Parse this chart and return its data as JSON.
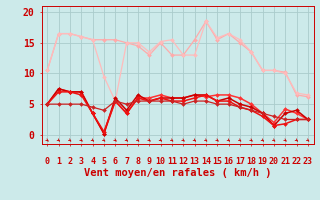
{
  "background_color": "#cceaea",
  "grid_color": "#aacccc",
  "x_labels": [
    "0",
    "1",
    "2",
    "3",
    "4",
    "5",
    "6",
    "7",
    "8",
    "9",
    "10",
    "11",
    "12",
    "13",
    "14",
    "15",
    "16",
    "17",
    "18",
    "19",
    "20",
    "21",
    "22",
    "23"
  ],
  "yticks": [
    0,
    5,
    10,
    15,
    20
  ],
  "ylim": [
    -1.5,
    21
  ],
  "xlim": [
    -0.5,
    23.5
  ],
  "lines": [
    {
      "x": [
        0,
        1,
        2,
        3,
        4,
        5,
        6,
        7,
        8,
        9,
        10,
        11,
        12,
        13,
        14,
        15,
        16,
        17,
        18,
        19,
        20,
        21,
        22,
        23
      ],
      "y": [
        10.5,
        16.5,
        16.5,
        16.0,
        15.5,
        15.5,
        15.5,
        15.0,
        14.5,
        13.0,
        15.0,
        13.0,
        13.0,
        15.5,
        18.5,
        15.5,
        16.5,
        15.0,
        13.5,
        10.5,
        10.5,
        10.2,
        6.5,
        6.2
      ],
      "color": "#ffaaaa",
      "lw": 0.9,
      "marker": "D",
      "ms": 2.0
    },
    {
      "x": [
        0,
        1,
        2,
        3,
        4,
        5,
        6,
        7,
        8,
        9,
        10,
        11,
        12,
        13,
        14,
        15,
        16,
        17,
        18,
        19,
        20,
        21,
        22,
        23
      ],
      "y": [
        10.5,
        16.5,
        16.5,
        16.0,
        15.5,
        9.5,
        5.5,
        15.0,
        15.0,
        13.5,
        15.2,
        15.5,
        13.0,
        13.0,
        18.5,
        15.8,
        16.5,
        15.5,
        13.5,
        10.5,
        10.5,
        10.0,
        6.8,
        6.5
      ],
      "color": "#ffbbbb",
      "lw": 0.9,
      "marker": "D",
      "ms": 2.0
    },
    {
      "x": [
        0,
        1,
        2,
        3,
        4,
        5,
        6,
        7,
        8,
        9,
        10,
        11,
        12,
        13,
        14,
        15,
        16,
        17,
        18,
        19,
        20,
        21,
        22,
        23
      ],
      "y": [
        5.0,
        7.5,
        7.0,
        7.0,
        3.5,
        0.2,
        5.5,
        3.5,
        6.0,
        6.0,
        6.5,
        6.0,
        6.0,
        6.5,
        6.2,
        6.5,
        6.5,
        6.0,
        5.0,
        3.5,
        2.0,
        4.2,
        3.5,
        2.5
      ],
      "color": "#ff3333",
      "lw": 1.1,
      "marker": "D",
      "ms": 2.0
    },
    {
      "x": [
        0,
        1,
        2,
        3,
        4,
        5,
        6,
        7,
        8,
        9,
        10,
        11,
        12,
        13,
        14,
        15,
        16,
        17,
        18,
        19,
        20,
        21,
        22,
        23
      ],
      "y": [
        5.0,
        7.5,
        7.0,
        7.0,
        3.5,
        0.2,
        6.0,
        4.0,
        6.5,
        5.5,
        6.0,
        6.0,
        6.0,
        6.5,
        6.5,
        5.5,
        6.0,
        5.0,
        4.5,
        3.5,
        1.5,
        3.5,
        4.0,
        2.5
      ],
      "color": "#cc0000",
      "lw": 1.1,
      "marker": "D",
      "ms": 2.0
    },
    {
      "x": [
        0,
        1,
        2,
        3,
        4,
        5,
        6,
        7,
        8,
        9,
        10,
        11,
        12,
        13,
        14,
        15,
        16,
        17,
        18,
        19,
        20,
        21,
        22,
        23
      ],
      "y": [
        5.0,
        7.0,
        7.0,
        6.5,
        3.5,
        0.5,
        5.5,
        3.5,
        6.0,
        5.5,
        6.0,
        5.5,
        5.5,
        6.0,
        6.5,
        5.5,
        5.5,
        4.5,
        4.0,
        3.0,
        1.5,
        1.8,
        2.5,
        2.5
      ],
      "color": "#ee1111",
      "lw": 1.1,
      "marker": "D",
      "ms": 2.0
    },
    {
      "x": [
        0,
        1,
        2,
        3,
        4,
        5,
        6,
        7,
        8,
        9,
        10,
        11,
        12,
        13,
        14,
        15,
        16,
        17,
        18,
        19,
        20,
        21,
        22,
        23
      ],
      "y": [
        5.0,
        5.0,
        5.0,
        5.0,
        4.5,
        4.0,
        5.5,
        5.0,
        5.5,
        5.5,
        5.5,
        5.5,
        5.0,
        5.5,
        5.5,
        5.0,
        5.0,
        4.5,
        4.0,
        3.5,
        3.0,
        2.5,
        2.5,
        2.5
      ],
      "color": "#cc2222",
      "lw": 0.9,
      "marker": "D",
      "ms": 2.0
    }
  ],
  "xlabel": "Vent moyen/en rafales ( km/h )",
  "xlabel_fontsize": 7.5,
  "tick_fontsize": 6,
  "ytick_fontsize": 7,
  "tick_color": "#cc0000",
  "label_color": "#cc0000",
  "arrow_color": "#cc0000"
}
